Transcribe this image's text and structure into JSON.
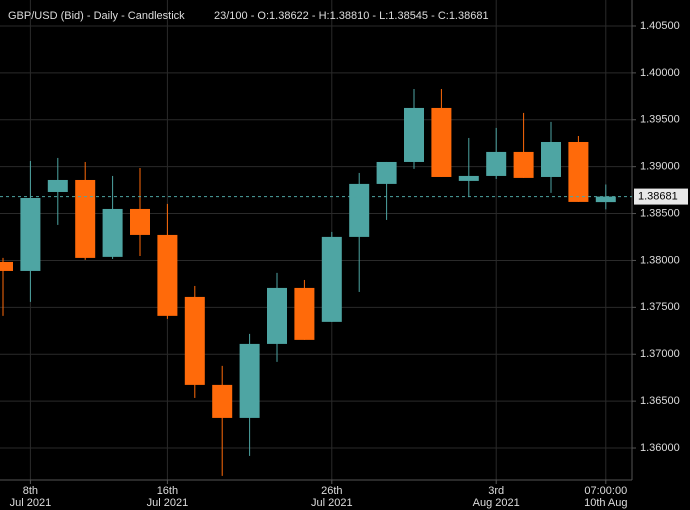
{
  "chart_data": {
    "type": "candlestick",
    "title": "GBP/USD (Bid) - Daily - Candlestick",
    "subtitle": "23/100 - O:1.38622 - H:1.38810 - L:1.38545 - C:1.38681",
    "categories": [
      null,
      {
        "day": "8th",
        "month": "Jul 2021"
      },
      null,
      null,
      null,
      null,
      {
        "day": "16th",
        "month": "Jul 2021"
      },
      null,
      null,
      null,
      null,
      null,
      {
        "day": "26th",
        "month": "Jul 2021"
      },
      null,
      null,
      null,
      null,
      null,
      {
        "day": "3rd",
        "month": "Aug 2021"
      },
      null,
      null,
      null,
      {
        "day": "07:00:00",
        "month": "10th Aug"
      }
    ],
    "open": [
      1.37984,
      1.37888,
      1.3873,
      1.38858,
      1.38038,
      1.38549,
      1.38272,
      1.37611,
      1.36673,
      1.36321,
      1.3711,
      1.37707,
      1.37345,
      1.38251,
      1.38816,
      1.3905,
      1.39626,
      1.38848,
      1.38901,
      1.39157,
      1.3889,
      1.39263,
      1.38622
    ],
    "high": [
      1.38027,
      1.39061,
      1.39093,
      1.3905,
      1.38901,
      1.38986,
      1.38603,
      1.37728,
      1.36876,
      1.37217,
      1.37867,
      1.37792,
      1.38304,
      1.38933,
      1.3905,
      1.39828,
      1.39828,
      1.39306,
      1.39413,
      1.39573,
      1.39477,
      1.39327,
      1.3881
    ],
    "low": [
      1.37409,
      1.37558,
      1.38379,
      1.38006,
      1.38016,
      1.38048,
      1.37377,
      1.36534,
      1.35703,
      1.35916,
      1.36918,
      1.37153,
      1.37345,
      1.37664,
      1.38432,
      1.38976,
      1.3889,
      1.38677,
      1.38869,
      1.3888,
      1.3872,
      1.38624,
      1.38545
    ],
    "close": [
      1.37888,
      1.38666,
      1.38858,
      1.38027,
      1.38549,
      1.38272,
      1.37409,
      1.36673,
      1.36321,
      1.3711,
      1.37707,
      1.37153,
      1.38251,
      1.38816,
      1.3905,
      1.39626,
      1.3889,
      1.38901,
      1.39157,
      1.3888,
      1.39263,
      1.38624,
      1.38681
    ],
    "up_color": "#4ea5a3",
    "down_color": "#ff6a0a",
    "last_price": 1.38681,
    "ylim": [
      1.35659,
      1.40777
    ],
    "yticks": [
      {
        "value": 1.36,
        "label": "1.36000"
      },
      {
        "value": 1.365,
        "label": "1.36500"
      },
      {
        "value": 1.37,
        "label": "1.37000"
      },
      {
        "value": 1.375,
        "label": "1.37500"
      },
      {
        "value": 1.38,
        "label": "1.38000"
      },
      {
        "value": 1.385,
        "label": "1.38500"
      },
      {
        "value": 1.39,
        "label": "1.39000"
      },
      {
        "value": 1.395,
        "label": "1.39500"
      },
      {
        "value": 1.4,
        "label": "1.40000"
      },
      {
        "value": 1.405,
        "label": "1.40500"
      }
    ],
    "grid": true
  }
}
